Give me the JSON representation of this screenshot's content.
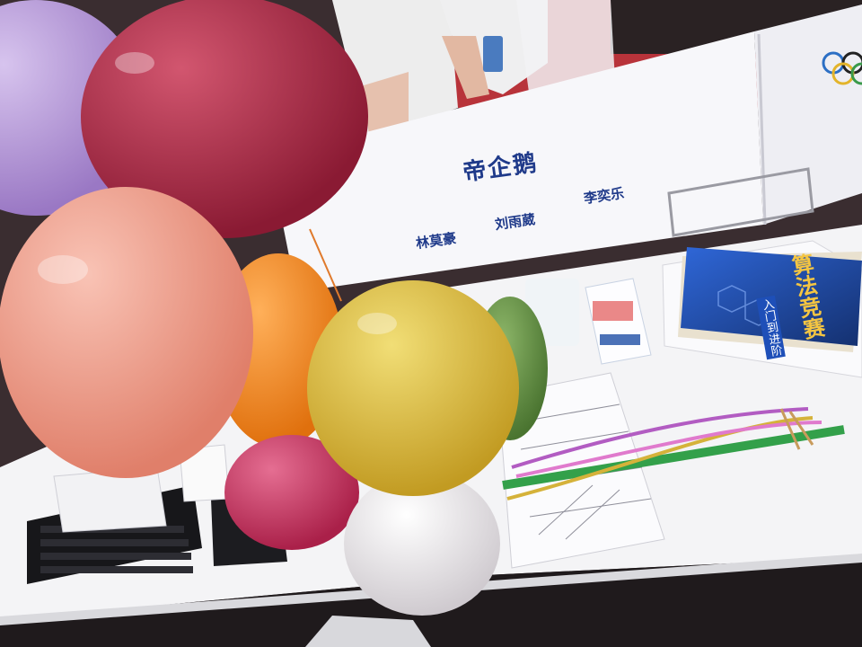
{
  "placard": {
    "team_name": "帝企鹅",
    "members": [
      "林莫豪",
      "刘雨葳",
      "李奕乐"
    ]
  },
  "book": {
    "title": "算法竞赛",
    "subtitle": "入门到进阶"
  },
  "colors": {
    "balloon_purple": "#b497d6",
    "balloon_crimson": "#a3233f",
    "balloon_peach": "#ee9a86",
    "balloon_orange": "#f08a1c",
    "balloon_yellow": "#d8b63a",
    "balloon_green": "#5f8a3c",
    "balloon_magenta": "#c7345e",
    "balloon_white": "#e6e3e6",
    "placard_text": "#1f3a8a",
    "book_cover": "#1c3f9e"
  }
}
